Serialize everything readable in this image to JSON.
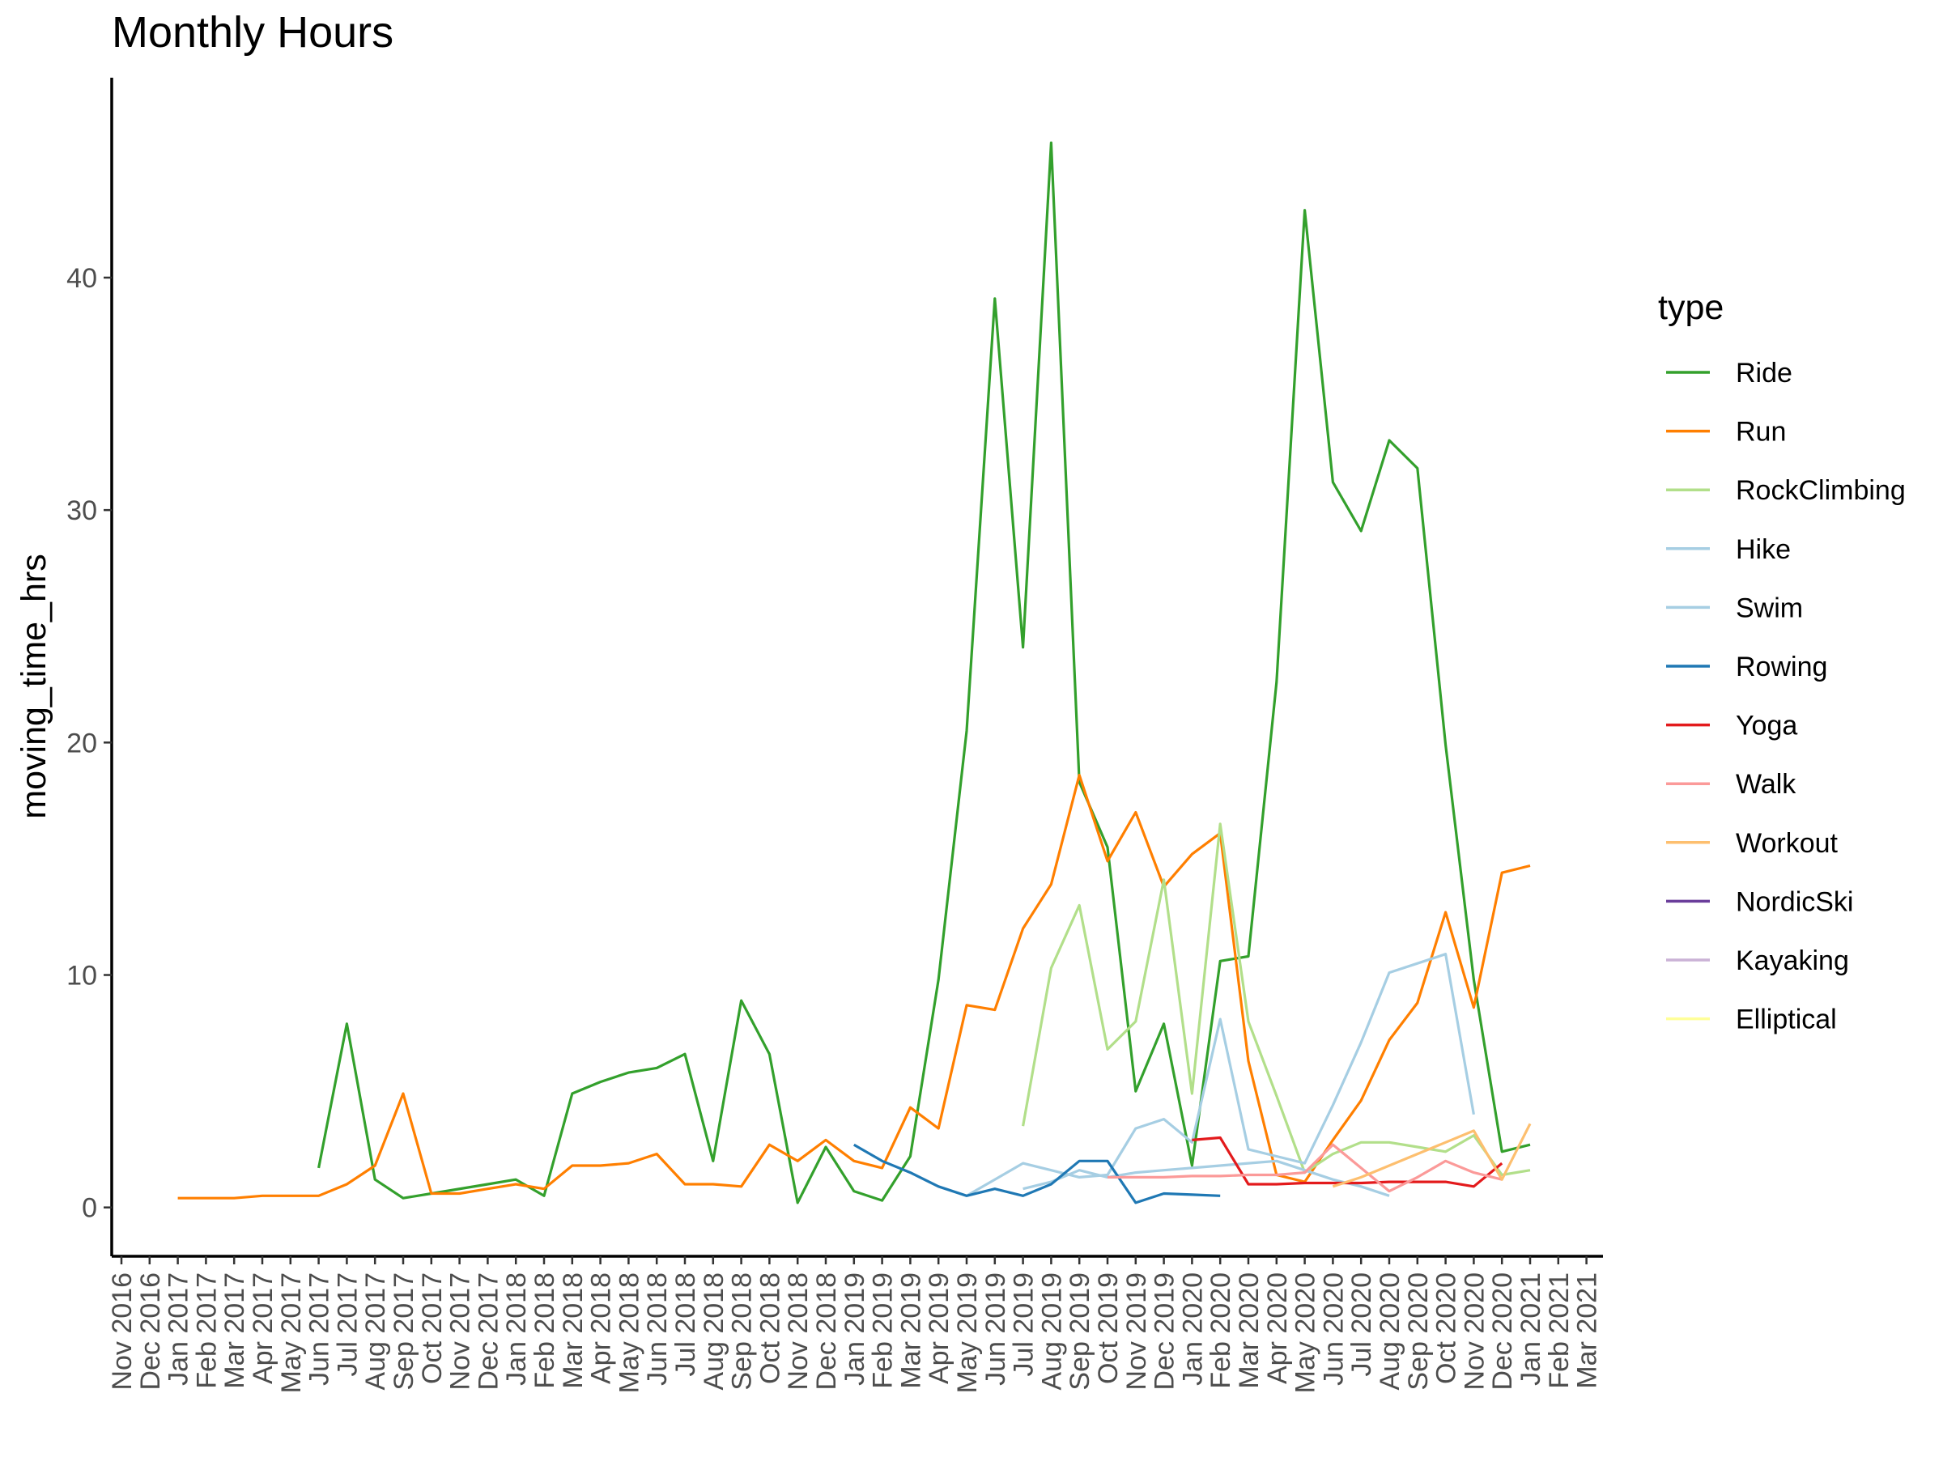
{
  "chart_data": {
    "type": "line",
    "title": "Monthly Hours",
    "xlabel": "",
    "ylabel": "moving_time_hrs",
    "ylim": [
      -2.1,
      48.6
    ],
    "yticks": [
      0,
      10,
      20,
      30,
      40
    ],
    "categories": [
      "Nov 2016",
      "Dec 2016",
      "Jan 2017",
      "Feb 2017",
      "Mar 2017",
      "Apr 2017",
      "May 2017",
      "Jun 2017",
      "Jul 2017",
      "Aug 2017",
      "Sep 2017",
      "Oct 2017",
      "Nov 2017",
      "Dec 2017",
      "Jan 2018",
      "Feb 2018",
      "Mar 2018",
      "Apr 2018",
      "May 2018",
      "Jun 2018",
      "Jul 2018",
      "Aug 2018",
      "Sep 2018",
      "Oct 2018",
      "Nov 2018",
      "Dec 2018",
      "Jan 2019",
      "Feb 2019",
      "Mar 2019",
      "Apr 2019",
      "May 2019",
      "Jun 2019",
      "Jul 2019",
      "Aug 2019",
      "Sep 2019",
      "Oct 2019",
      "Nov 2019",
      "Dec 2019",
      "Jan 2020",
      "Feb 2020",
      "Mar 2020",
      "Apr 2020",
      "May 2020",
      "Jun 2020",
      "Jul 2020",
      "Aug 2020",
      "Sep 2020",
      "Oct 2020",
      "Nov 2020",
      "Dec 2020",
      "Jan 2021",
      "Feb 2021",
      "Mar 2021"
    ],
    "legend": {
      "title": "type",
      "position": "right"
    },
    "grid": false,
    "series": [
      {
        "name": "Ride",
        "color": "#33A02C",
        "points": [
          [
            "Jun 2017",
            1.7
          ],
          [
            "Jul 2017",
            7.9
          ],
          [
            "Aug 2017",
            1.2
          ],
          [
            "Sep 2017",
            0.4
          ],
          [
            "Oct 2017",
            0.6
          ],
          [
            "Dec 2017",
            1.0
          ],
          [
            "Jan 2018",
            1.2
          ],
          [
            "Feb 2018",
            0.5
          ],
          [
            "Mar 2018",
            4.9
          ],
          [
            "Apr 2018",
            5.4
          ],
          [
            "May 2018",
            5.8
          ],
          [
            "Jun 2018",
            6.0
          ],
          [
            "Jul 2018",
            6.6
          ],
          [
            "Aug 2018",
            2.0
          ],
          [
            "Sep 2018",
            8.9
          ],
          [
            "Oct 2018",
            6.6
          ],
          [
            "Nov 2018",
            0.2
          ],
          [
            "Dec 2018",
            2.6
          ],
          [
            "Jan 2019",
            0.7
          ],
          [
            "Feb 2019",
            0.3
          ],
          [
            "Mar 2019",
            2.2
          ],
          [
            "Apr 2019",
            9.8
          ],
          [
            "May 2019",
            20.5
          ],
          [
            "Jun 2019",
            39.1
          ],
          [
            "Jul 2019",
            24.1
          ],
          [
            "Aug 2019",
            45.8
          ],
          [
            "Sep 2019",
            18.3
          ],
          [
            "Oct 2019",
            15.5
          ],
          [
            "Nov 2019",
            5.0
          ],
          [
            "Dec 2019",
            7.9
          ],
          [
            "Jan 2020",
            1.8
          ],
          [
            "Feb 2020",
            10.6
          ],
          [
            "Mar 2020",
            10.8
          ],
          [
            "Apr 2020",
            22.6
          ],
          [
            "May 2020",
            42.9
          ],
          [
            "Jun 2020",
            31.2
          ],
          [
            "Jul 2020",
            29.1
          ],
          [
            "Aug 2020",
            33.0
          ],
          [
            "Sep 2020",
            31.8
          ],
          [
            "Oct 2020",
            19.9
          ],
          [
            "Nov 2020",
            9.8
          ],
          [
            "Dec 2020",
            2.4
          ],
          [
            "Jan 2021",
            2.7
          ]
        ]
      },
      {
        "name": "Run",
        "color": "#FF7F00",
        "points": [
          [
            "Jan 2017",
            0.4
          ],
          [
            "Feb 2017",
            0.4
          ],
          [
            "Mar 2017",
            0.4
          ],
          [
            "Apr 2017",
            0.5
          ],
          [
            "May 2017",
            0.5
          ],
          [
            "Jun 2017",
            0.5
          ],
          [
            "Jul 2017",
            1.0
          ],
          [
            "Aug 2017",
            1.8
          ],
          [
            "Sep 2017",
            4.9
          ],
          [
            "Oct 2017",
            0.6
          ],
          [
            "Nov 2017",
            0.6
          ],
          [
            "Dec 2017",
            0.8
          ],
          [
            "Jan 2018",
            1.0
          ],
          [
            "Feb 2018",
            0.8
          ],
          [
            "Mar 2018",
            1.8
          ],
          [
            "Apr 2018",
            1.8
          ],
          [
            "May 2018",
            1.9
          ],
          [
            "Jun 2018",
            2.3
          ],
          [
            "Jul 2018",
            1.0
          ],
          [
            "Aug 2018",
            1.0
          ],
          [
            "Sep 2018",
            0.9
          ],
          [
            "Oct 2018",
            2.7
          ],
          [
            "Nov 2018",
            2.0
          ],
          [
            "Dec 2018",
            2.9
          ],
          [
            "Jan 2019",
            2.0
          ],
          [
            "Feb 2019",
            1.7
          ],
          [
            "Mar 2019",
            4.3
          ],
          [
            "Apr 2019",
            3.4
          ],
          [
            "May 2019",
            8.7
          ],
          [
            "Jun 2019",
            8.5
          ],
          [
            "Jul 2019",
            12.0
          ],
          [
            "Aug 2019",
            13.9
          ],
          [
            "Sep 2019",
            18.6
          ],
          [
            "Oct 2019",
            14.9
          ],
          [
            "Nov 2019",
            17.0
          ],
          [
            "Dec 2019",
            13.8
          ],
          [
            "Jan 2020",
            15.2
          ],
          [
            "Feb 2020",
            16.1
          ],
          [
            "Mar 2020",
            6.3
          ],
          [
            "Apr 2020",
            1.4
          ],
          [
            "May 2020",
            1.1
          ],
          [
            "Jun 2020",
            2.9
          ],
          [
            "Jul 2020",
            4.6
          ],
          [
            "Aug 2020",
            7.2
          ],
          [
            "Sep 2020",
            8.8
          ],
          [
            "Oct 2020",
            12.7
          ],
          [
            "Nov 2020",
            8.6
          ],
          [
            "Dec 2020",
            14.4
          ],
          [
            "Jan 2021",
            14.7
          ]
        ]
      },
      {
        "name": "RockClimbing",
        "color": "#B2DF8A",
        "points": [
          [
            "Jul 2019",
            3.5
          ],
          [
            "Aug 2019",
            10.3
          ],
          [
            "Sep 2019",
            13.0
          ],
          [
            "Oct 2019",
            6.8
          ],
          [
            "Nov 2019",
            8.0
          ],
          [
            "Dec 2019",
            14.1
          ],
          [
            "Jan 2020",
            4.9
          ],
          [
            "Feb 2020",
            16.5
          ],
          [
            "Mar 2020",
            8.0
          ],
          [
            "Apr 2020",
            4.8
          ],
          [
            "May 2020",
            1.5
          ],
          [
            "Jun 2020",
            2.3
          ],
          [
            "Jul 2020",
            2.8
          ],
          [
            "Aug 2020",
            2.8
          ],
          [
            "Sep 2020",
            2.6
          ],
          [
            "Oct 2020",
            2.4
          ],
          [
            "Nov 2020",
            3.1
          ],
          [
            "Dec 2020",
            1.4
          ],
          [
            "Jan 2021",
            1.6
          ]
        ]
      },
      {
        "name": "Hike",
        "color": "#A6CEE3",
        "points": [
          [
            "May 2019",
            0.5
          ],
          [
            "Jun 2019",
            1.2
          ],
          [
            "Jul 2019",
            1.9
          ],
          [
            "Aug 2019",
            1.6
          ],
          [
            "Sep 2019",
            1.3
          ],
          [
            "Oct 2019",
            1.4
          ],
          [
            "Nov 2019",
            3.4
          ],
          [
            "Dec 2019",
            3.8
          ],
          [
            "Jan 2020",
            2.8
          ],
          [
            "Feb 2020",
            8.1
          ],
          [
            "Mar 2020",
            2.5
          ],
          [
            "Apr 2020",
            2.2
          ],
          [
            "May 2020",
            1.9
          ],
          [
            "Jun 2020",
            4.4
          ],
          [
            "Jul 2020",
            7.1
          ],
          [
            "Aug 2020",
            10.1
          ],
          [
            "Sep 2020",
            10.5
          ],
          [
            "Oct 2020",
            10.9
          ],
          [
            "Nov 2020",
            4.0
          ]
        ]
      },
      {
        "name": "Swim",
        "color": "#A6CEE3",
        "points": [
          [
            "Jul 2019",
            0.8
          ],
          [
            "Aug 2019",
            1.1
          ],
          [
            "Sep 2019",
            1.6
          ],
          [
            "Oct 2019",
            1.3
          ],
          [
            "Nov 2019",
            1.5
          ],
          [
            "Dec 2019",
            1.6
          ],
          [
            "Jan 2020",
            1.7
          ],
          [
            "Feb 2020",
            1.8
          ],
          [
            "Mar 2020",
            1.9
          ],
          [
            "Apr 2020",
            2.0
          ],
          [
            "May 2020",
            1.6
          ],
          [
            "Jun 2020",
            1.2
          ],
          [
            "Jul 2020",
            0.9
          ],
          [
            "Aug 2020",
            0.5
          ]
        ]
      },
      {
        "name": "Rowing",
        "color": "#1F78B4",
        "points": [
          [
            "Jan 2019",
            2.7
          ],
          [
            "Feb 2019",
            2.0
          ],
          [
            "Mar 2019",
            1.5
          ],
          [
            "Apr 2019",
            0.9
          ],
          [
            "May 2019",
            0.5
          ],
          [
            "Jun 2019",
            0.8
          ],
          [
            "Jul 2019",
            0.5
          ],
          [
            "Aug 2019",
            1.0
          ],
          [
            "Sep 2019",
            2.0
          ],
          [
            "Oct 2019",
            2.0
          ],
          [
            "Nov 2019",
            0.2
          ],
          [
            "Dec 2019",
            0.6
          ],
          [
            "Jan 2020",
            0.55
          ],
          [
            "Feb 2020",
            0.5
          ]
        ]
      },
      {
        "name": "Yoga",
        "color": "#E31A1C",
        "points": [
          [
            "Jan 2020",
            2.9
          ],
          [
            "Feb 2020",
            3.0
          ],
          [
            "Mar 2020",
            1.0
          ],
          [
            "Apr 2020",
            1.0
          ],
          [
            "May 2020",
            1.05
          ],
          [
            "Jun 2020",
            1.05
          ],
          [
            "Jul 2020",
            1.05
          ],
          [
            "Aug 2020",
            1.1
          ],
          [
            "Sep 2020",
            1.1
          ],
          [
            "Oct 2020",
            1.1
          ],
          [
            "Nov 2020",
            0.9
          ],
          [
            "Dec 2020",
            1.9
          ]
        ]
      },
      {
        "name": "Walk",
        "color": "#FB9A99",
        "points": [
          [
            "Oct 2019",
            1.3
          ],
          [
            "Nov 2019",
            1.3
          ],
          [
            "Dec 2019",
            1.3
          ],
          [
            "Jan 2020",
            1.35
          ],
          [
            "Feb 2020",
            1.35
          ],
          [
            "Mar 2020",
            1.4
          ],
          [
            "Apr 2020",
            1.4
          ],
          [
            "May 2020",
            1.5
          ],
          [
            "Jun 2020",
            2.7
          ],
          [
            "Jul 2020",
            1.7
          ],
          [
            "Aug 2020",
            0.7
          ],
          [
            "Sep 2020",
            1.3
          ],
          [
            "Oct 2020",
            2.0
          ],
          [
            "Nov 2020",
            1.5
          ],
          [
            "Dec 2020",
            1.2
          ]
        ]
      },
      {
        "name": "Workout",
        "color": "#FDBF6F",
        "points": [
          [
            "Jun 2020",
            0.9
          ],
          [
            "Jul 2020",
            1.3
          ],
          [
            "Aug 2020",
            1.8
          ],
          [
            "Sep 2020",
            2.3
          ],
          [
            "Oct 2020",
            2.8
          ],
          [
            "Nov 2020",
            3.3
          ],
          [
            "Dec 2020",
            1.2
          ],
          [
            "Jan 2021",
            3.6
          ]
        ]
      },
      {
        "name": "NordicSki",
        "color": "#6A3D9A",
        "points": []
      },
      {
        "name": "Kayaking",
        "color": "#CAB2D6",
        "points": []
      },
      {
        "name": "Elliptical",
        "color": "#FFFF99",
        "points": []
      }
    ]
  }
}
